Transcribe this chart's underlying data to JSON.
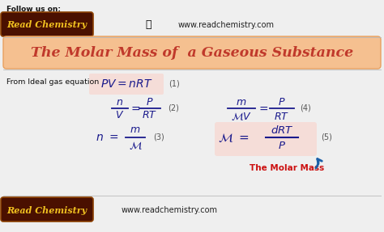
{
  "bg_color": "#efefef",
  "title_text": "The Molar Mass of  a Gaseous Substance",
  "title_bg_top": "#f8d0a0",
  "title_bg_bot": "#f0b070",
  "title_color": "#c0392b",
  "header_text": "Follow us on:",
  "brand_text": "Read Chemistry",
  "brand_bg": "#4a1000",
  "brand_text_color": "#f0c020",
  "website": "www.readchemistry.com",
  "from_text": "From Ideal gas equation",
  "eq1_num": "(1)",
  "eq1_bg": "#f5ddd8",
  "eq2_num": "(2)",
  "eq3_num": "(3)",
  "eq4_num": "(4)",
  "eq5_num": "(5)",
  "eq5_bg": "#f5ddd8",
  "molar_mass_label": "The Molar Mass",
  "molar_mass_color": "#cc1111",
  "eq_color": "#1a1a8c",
  "number_color": "#555555",
  "separator_color": "#bbbbbb",
  "arrow_color": "#1a5fa8"
}
